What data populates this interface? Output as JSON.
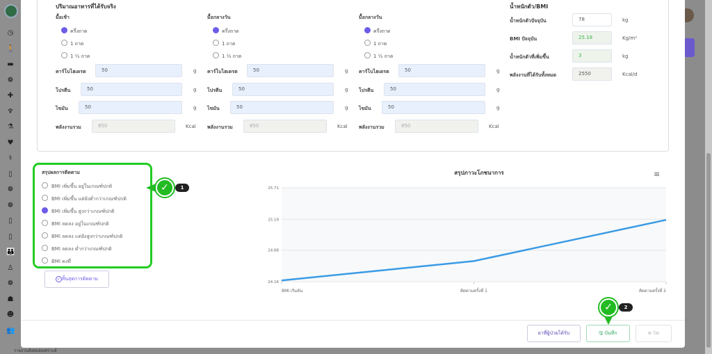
{
  "sidebar": {
    "footer_text": "รายงานสังคมสงเคราะห์",
    "icons": [
      "clock-icon",
      "walk-icon",
      "bed-icon",
      "care-hands-icon",
      "cross-icon",
      "tooth-icon",
      "microscope-icon",
      "heart-pulse-icon",
      "stethoscope-icon",
      "phone-icon",
      "care-hands-icon",
      "care-hands-icon",
      "phone-icon",
      "phone-icon",
      "family-icon",
      "person-icon",
      "care-hands-icon",
      "doctor-icon",
      "head-icon",
      "people-icon"
    ]
  },
  "intake": {
    "title": "ปริมาณอาหารที่ได้รับจริง",
    "meals": [
      {
        "name": "มื้อเช้า",
        "options": [
          "ครึ่งถาด",
          "1 ถาด",
          "1 ½ ถาด"
        ],
        "selected": 0,
        "carb": "50",
        "protein": "50",
        "fat": "50",
        "energy": "850"
      },
      {
        "name": "มื้อกลางวัน",
        "options": [
          "ครึ่งถาด",
          "1 ถาด",
          "1 ½ ถาด"
        ],
        "selected": 0,
        "carb": "50",
        "protein": "50",
        "fat": "50",
        "energy": "850"
      },
      {
        "name": "มื้อกลางวัน",
        "options": [
          "ครึ่งถาด",
          "1 ถาด",
          "1 ½ ถาด"
        ],
        "selected": 0,
        "carb": "50",
        "protein": "50",
        "fat": "50",
        "energy": "850"
      }
    ],
    "labels": {
      "carb": "คาร์โบไฮเดรต",
      "protein": "โปรตีน",
      "fat": "ไขมัน",
      "energy": "พลังงานรวม"
    },
    "units": {
      "g": "g",
      "kcal": "Kcal"
    }
  },
  "bmi": {
    "title": "น้ำหนักตัว/BMI",
    "rows": [
      {
        "label": "น้ำหนักตัวปัจจุบัน",
        "value": "78",
        "unit": "kg"
      },
      {
        "label": "BMI ปัจจุบัน",
        "value": "25.18",
        "unit": "Kg/m²"
      },
      {
        "label": "น้ำหนักตัวที่เพิ่มขึ้น",
        "value": "3",
        "unit": "kg"
      },
      {
        "label": "พลังงานที่ได้รับทั้งหมด",
        "value": "2550",
        "unit": "Kcal/d"
      }
    ]
  },
  "summary": {
    "title": "สรุปผลการติดตาม",
    "options": [
      "BMI เพิ่มขึ้น อยู่ในเกณฑ์ปกติ",
      "BMI เพิ่มขึ้น แต่ยังต่ำกว่าเกณฑ์ปกติ",
      "BMI เพิ่มขึ้น สูงกว่าเกณฑ์ปกติ",
      "BMI ลดลง อยู่ในเกณฑ์ปกติ",
      "BMI ลดลง แต่ยังสูงกว่าเกณฑ์ปกติ",
      "BMI ลดลง ต่ำกว่าเกณฑ์ปกติ",
      "BMI คงที่"
    ],
    "selected": 2,
    "end_button": "สิ้นสุดการติดตาม"
  },
  "chart_data": {
    "type": "line",
    "title": "สรุปภาวะโภชนาการ",
    "categories": [
      "BMI เริ่มต้น",
      "ติดตามครั้งที่ 1",
      "ติดตามครั้งที่ 2"
    ],
    "series": [
      {
        "values": [
          24.18,
          24.5,
          25.18
        ]
      }
    ],
    "yticks": [
      "24.16",
      "24.68",
      "25.19",
      "25.71"
    ],
    "ylim": [
      24.16,
      25.71
    ],
    "color": "#3a9be6",
    "grid": true
  },
  "footer": {
    "meds_button": "ยาที่ผู้ป่วยได้รับ",
    "save_button": "บันทึก",
    "close_button": "ปิด"
  },
  "annotations": {
    "step1": "1",
    "step2": "2",
    "color": "#22cc22"
  }
}
